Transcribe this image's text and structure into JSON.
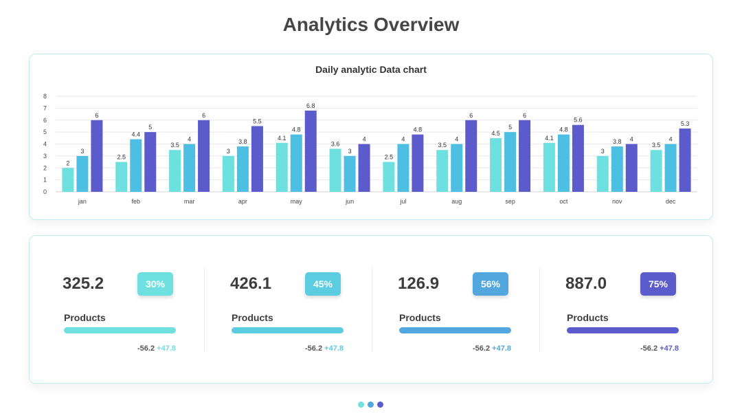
{
  "page": {
    "title": "Analytics Overview"
  },
  "colors": {
    "series": [
      "#6ee0df",
      "#4dbfe3",
      "#5b5bcc"
    ],
    "stats": [
      "#6ee0df",
      "#5ccde0",
      "#52a7df",
      "#5b5bcc"
    ],
    "dots": [
      "#6ee0df",
      "#52a7df",
      "#5b5bcc"
    ]
  },
  "chart_data": {
    "type": "bar",
    "title": "Daily analytic Data chart",
    "xlabel": "",
    "ylabel": "",
    "categories": [
      "jan",
      "feb",
      "mar",
      "apr",
      "may",
      "jun",
      "jul",
      "aug",
      "sep",
      "oct",
      "nov",
      "dec"
    ],
    "series": [
      {
        "values": [
          2,
          2.5,
          3.5,
          3,
          4.1,
          3.6,
          2.5,
          3.5,
          4.5,
          4.1,
          3,
          3.5
        ]
      },
      {
        "values": [
          3,
          4.4,
          4,
          3.8,
          4.8,
          3,
          4,
          4,
          5,
          4.8,
          3.8,
          4
        ]
      },
      {
        "values": [
          6,
          5,
          6,
          5.5,
          6.8,
          4,
          4.8,
          6,
          6,
          5.6,
          4,
          5.3
        ]
      }
    ],
    "ylim": [
      0,
      8
    ],
    "yticks": [
      0,
      1,
      2,
      3,
      4,
      5,
      6,
      7,
      8
    ],
    "grid": true,
    "legend": "none",
    "data_labels": true
  },
  "stats": [
    {
      "value": "325.2",
      "percent": "30%",
      "label": "Products",
      "delta_neg": "-56.2",
      "delta_pos": "+47.8"
    },
    {
      "value": "426.1",
      "percent": "45%",
      "label": "Products",
      "delta_neg": "-56.2",
      "delta_pos": "+47.8"
    },
    {
      "value": "126.9",
      "percent": "56%",
      "label": "Products",
      "delta_neg": "-56.2",
      "delta_pos": "+47.8"
    },
    {
      "value": "887.0",
      "percent": "75%",
      "label": "Products",
      "delta_neg": "-56.2",
      "delta_pos": "+47.8"
    }
  ]
}
